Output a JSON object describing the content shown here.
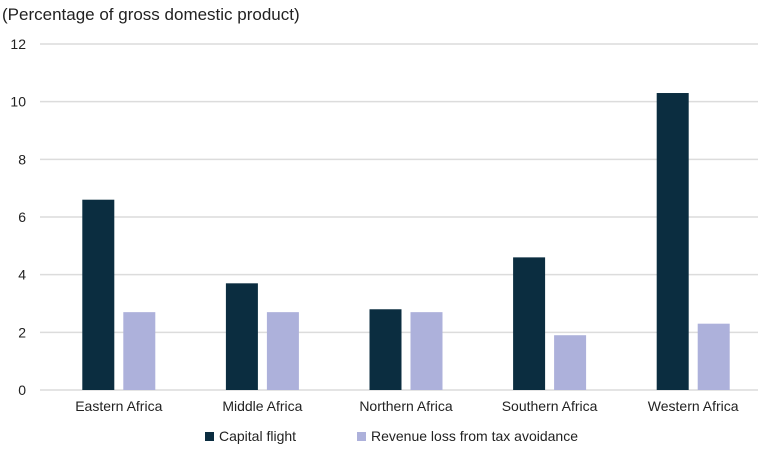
{
  "chart_data": {
    "type": "bar",
    "title": "",
    "ylabel": "(Percentage of gross domestic product)",
    "xlabel": "",
    "ylim": [
      0,
      12
    ],
    "yticks": [
      0,
      2,
      4,
      6,
      8,
      10,
      12
    ],
    "grid": true,
    "legend_placement": "bottom",
    "categories": [
      "Eastern Africa",
      "Middle Africa",
      "Northern Africa",
      "Southern Africa",
      "Western Africa"
    ],
    "series": [
      {
        "name": "Capital flight",
        "color": "#0b2d40",
        "values": [
          6.6,
          3.7,
          2.8,
          4.6,
          10.3
        ]
      },
      {
        "name": "Revenue loss from tax avoidance",
        "color": "#adb1db",
        "values": [
          2.7,
          2.7,
          2.7,
          1.9,
          2.3
        ]
      }
    ]
  }
}
